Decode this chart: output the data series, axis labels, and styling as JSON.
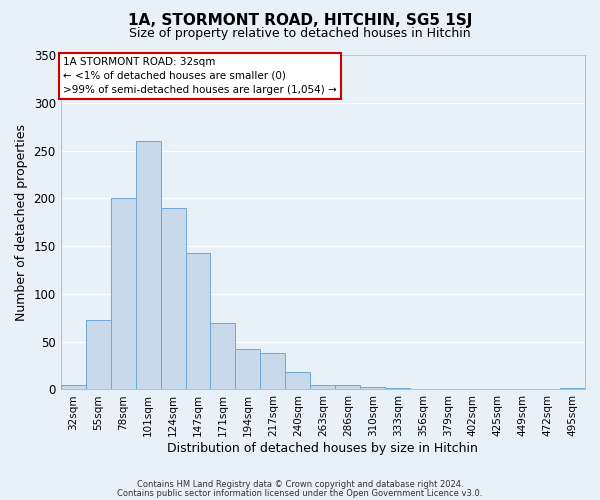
{
  "title_line1": "1A, STORMONT ROAD, HITCHIN, SG5 1SJ",
  "title_line2": "Size of property relative to detached houses in Hitchin",
  "xlabel": "Distribution of detached houses by size in Hitchin",
  "ylabel": "Number of detached properties",
  "categories": [
    "32sqm",
    "55sqm",
    "78sqm",
    "101sqm",
    "124sqm",
    "147sqm",
    "171sqm",
    "194sqm",
    "217sqm",
    "240sqm",
    "263sqm",
    "286sqm",
    "310sqm",
    "333sqm",
    "356sqm",
    "379sqm",
    "402sqm",
    "425sqm",
    "449sqm",
    "472sqm",
    "495sqm"
  ],
  "values": [
    5,
    73,
    200,
    260,
    190,
    143,
    70,
    42,
    38,
    18,
    5,
    5,
    3,
    2,
    1,
    1,
    0,
    0,
    0,
    0,
    2
  ],
  "bar_color": "#c9d9ec",
  "bar_edge_color": "#6fa8d4",
  "background_color": "#e8f0f8",
  "grid_color": "#ffffff",
  "ylim": [
    0,
    350
  ],
  "yticks": [
    0,
    50,
    100,
    150,
    200,
    250,
    300,
    350
  ],
  "annotation_title": "1A STORMONT ROAD: 32sqm",
  "annotation_line2": "← <1% of detached houses are smaller (0)",
  "annotation_line3": ">99% of semi-detached houses are larger (1,054) →",
  "annotation_box_color": "#ffffff",
  "annotation_box_edge_color": "#cc0000",
  "footer_line1": "Contains HM Land Registry data © Crown copyright and database right 2024.",
  "footer_line2": "Contains public sector information licensed under the Open Government Licence v3.0."
}
